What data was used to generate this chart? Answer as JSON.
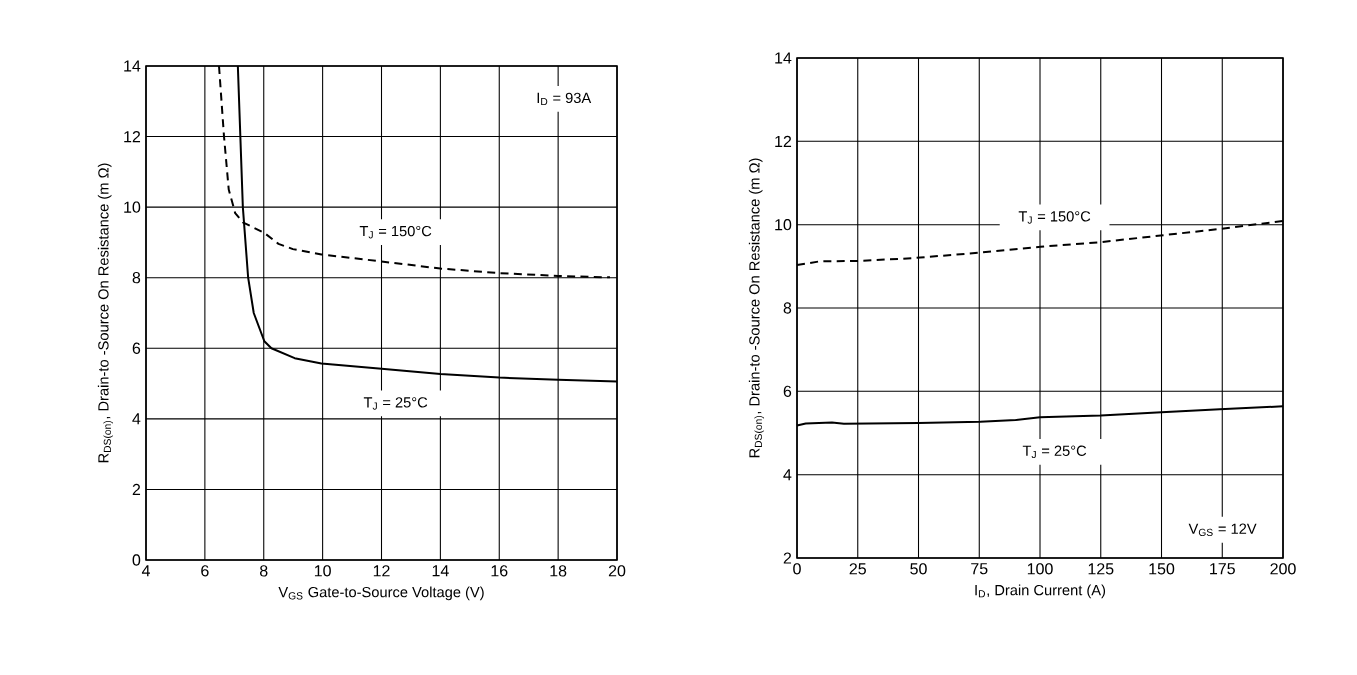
{
  "chart_data": [
    {
      "type": "line",
      "xlabel": "V$_{GS}$ Gate-to-Source Voltage (V)",
      "ylabel": "R$_{DS(on)}$, Drain-to -Source On Resistance (m Ω)",
      "annotations": [
        "I$_{D}$ = 93A"
      ],
      "xlim": [
        4,
        20
      ],
      "ylim": [
        0,
        14
      ],
      "xticks": [
        4,
        6,
        8,
        10,
        12,
        14,
        16,
        18,
        20
      ],
      "yticks": [
        0,
        2,
        4,
        6,
        8,
        10,
        12,
        14
      ],
      "grid": true,
      "legend": false,
      "series": [
        {
          "name": "T$_{J}$ = 150°C",
          "color": "#000000",
          "line_style": "dashed",
          "x": [
            6.48,
            6.65,
            6.81,
            7.03,
            7.29,
            8.02,
            8.5,
            8.99,
            9.96,
            12,
            14,
            16,
            18,
            19.76
          ],
          "values": [
            14,
            12,
            10.5,
            9.83,
            9.57,
            9.27,
            8.96,
            8.81,
            8.66,
            8.46,
            8.26,
            8.13,
            8.05,
            8.01
          ]
        },
        {
          "name": "T$_{J}$ = 25°C",
          "color": "#000000",
          "line_style": "solid",
          "x": [
            7.12,
            7.29,
            7.47,
            7.66,
            8.02,
            8.26,
            9.05,
            9.96,
            12,
            14,
            16,
            18,
            20
          ],
          "values": [
            14,
            10,
            8,
            7,
            6.2,
            6.0,
            5.72,
            5.57,
            5.42,
            5.27,
            5.17,
            5.11,
            5.06
          ]
        }
      ]
    },
    {
      "type": "line",
      "xlabel": "I$_{D}$, Drain Current (A)",
      "ylabel": "R$_{DS(on)}$, Drain-to -Source On Resistance (m Ω)",
      "annotations": [
        "V$_{GS}$ = 12V"
      ],
      "xlim": [
        0,
        200
      ],
      "ylim": [
        2,
        14
      ],
      "xticks": [
        0,
        25,
        50,
        75,
        100,
        125,
        150,
        175,
        200
      ],
      "yticks": [
        2,
        4,
        6,
        8,
        10,
        12,
        14
      ],
      "grid": true,
      "legend": false,
      "series": [
        {
          "name": "T$_{J}$ = 150°C",
          "color": "#000000",
          "line_style": "dashed",
          "x": [
            0,
            9.4,
            25,
            42.4,
            50.7,
            75.4,
            100.2,
            125,
            149.7,
            174.4,
            200
          ],
          "values": [
            9.03,
            9.12,
            9.13,
            9.18,
            9.21,
            9.33,
            9.47,
            9.58,
            9.74,
            9.9,
            10.09
          ]
        },
        {
          "name": "T$_{J}$ = 25°C",
          "color": "#000000",
          "line_style": "solid",
          "x": [
            0,
            3.6,
            14.4,
            19.3,
            50,
            75.4,
            90,
            100,
            125,
            150,
            174,
            200
          ],
          "values": [
            5.18,
            5.23,
            5.25,
            5.22,
            5.24,
            5.27,
            5.31,
            5.38,
            5.42,
            5.5,
            5.57,
            5.64
          ]
        }
      ]
    }
  ]
}
